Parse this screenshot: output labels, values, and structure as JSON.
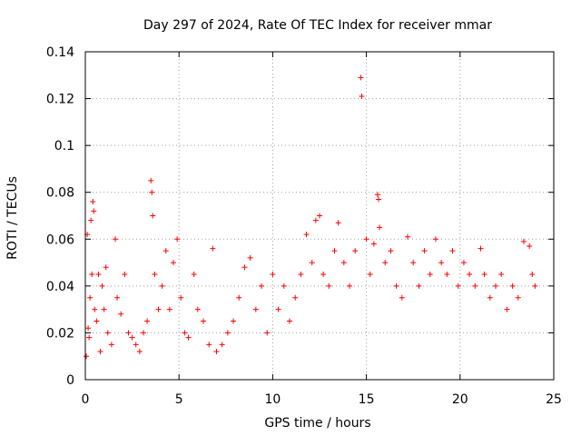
{
  "chart_data": {
    "type": "scatter",
    "title": "Day 297 of 2024, Rate Of TEC Index for receiver mmar",
    "xlabel": "GPS time / hours",
    "ylabel": "ROTI / TECUs",
    "xlim": [
      0,
      25
    ],
    "ylim": [
      0,
      0.14
    ],
    "x_ticks": [
      "0",
      "5",
      "10",
      "15",
      "20",
      "25"
    ],
    "y_ticks": [
      "0",
      "0.02",
      "0.04",
      "0.06",
      "0.08",
      "0.1",
      "0.12",
      "0.14"
    ],
    "grid": true,
    "marker": "+",
    "color": "#ff0000",
    "series": [
      {
        "name": "ROTI",
        "points": [
          [
            0.05,
            0.01
          ],
          [
            0.1,
            0.062
          ],
          [
            0.15,
            0.022
          ],
          [
            0.2,
            0.018
          ],
          [
            0.25,
            0.035
          ],
          [
            0.3,
            0.068
          ],
          [
            0.35,
            0.045
          ],
          [
            0.4,
            0.076
          ],
          [
            0.45,
            0.072
          ],
          [
            0.5,
            0.03
          ],
          [
            0.6,
            0.025
          ],
          [
            0.7,
            0.045
          ],
          [
            0.8,
            0.012
          ],
          [
            0.9,
            0.04
          ],
          [
            1.0,
            0.03
          ],
          [
            1.1,
            0.048
          ],
          [
            1.2,
            0.02
          ],
          [
            1.4,
            0.015
          ],
          [
            1.6,
            0.06
          ],
          [
            1.7,
            0.035
          ],
          [
            1.9,
            0.028
          ],
          [
            2.1,
            0.045
          ],
          [
            2.3,
            0.02
          ],
          [
            2.5,
            0.018
          ],
          [
            2.7,
            0.015
          ],
          [
            2.9,
            0.012
          ],
          [
            3.1,
            0.02
          ],
          [
            3.3,
            0.025
          ],
          [
            3.5,
            0.085
          ],
          [
            3.55,
            0.08
          ],
          [
            3.6,
            0.07
          ],
          [
            3.7,
            0.045
          ],
          [
            3.9,
            0.03
          ],
          [
            4.1,
            0.04
          ],
          [
            4.3,
            0.055
          ],
          [
            4.5,
            0.03
          ],
          [
            4.7,
            0.05
          ],
          [
            4.9,
            0.06
          ],
          [
            5.1,
            0.035
          ],
          [
            5.3,
            0.02
          ],
          [
            5.5,
            0.018
          ],
          [
            5.8,
            0.045
          ],
          [
            6.0,
            0.03
          ],
          [
            6.3,
            0.025
          ],
          [
            6.6,
            0.015
          ],
          [
            6.8,
            0.056
          ],
          [
            7.0,
            0.012
          ],
          [
            7.3,
            0.015
          ],
          [
            7.6,
            0.02
          ],
          [
            7.9,
            0.025
          ],
          [
            8.2,
            0.035
          ],
          [
            8.5,
            0.048
          ],
          [
            8.8,
            0.052
          ],
          [
            9.1,
            0.03
          ],
          [
            9.4,
            0.04
          ],
          [
            9.7,
            0.02
          ],
          [
            10.0,
            0.045
          ],
          [
            10.3,
            0.03
          ],
          [
            10.6,
            0.04
          ],
          [
            10.9,
            0.025
          ],
          [
            11.2,
            0.035
          ],
          [
            11.5,
            0.045
          ],
          [
            11.8,
            0.062
          ],
          [
            12.1,
            0.05
          ],
          [
            12.3,
            0.068
          ],
          [
            12.5,
            0.07
          ],
          [
            12.7,
            0.045
          ],
          [
            13.0,
            0.04
          ],
          [
            13.3,
            0.055
          ],
          [
            13.5,
            0.067
          ],
          [
            13.8,
            0.05
          ],
          [
            14.1,
            0.04
          ],
          [
            14.4,
            0.055
          ],
          [
            14.7,
            0.129
          ],
          [
            14.75,
            0.121
          ],
          [
            15.0,
            0.06
          ],
          [
            15.2,
            0.045
          ],
          [
            15.4,
            0.058
          ],
          [
            15.6,
            0.079
          ],
          [
            15.65,
            0.077
          ],
          [
            15.7,
            0.065
          ],
          [
            16.0,
            0.05
          ],
          [
            16.3,
            0.055
          ],
          [
            16.6,
            0.04
          ],
          [
            16.9,
            0.035
          ],
          [
            17.2,
            0.061
          ],
          [
            17.5,
            0.05
          ],
          [
            17.8,
            0.04
          ],
          [
            18.1,
            0.055
          ],
          [
            18.4,
            0.045
          ],
          [
            18.7,
            0.06
          ],
          [
            19.0,
            0.05
          ],
          [
            19.3,
            0.045
          ],
          [
            19.6,
            0.055
          ],
          [
            19.9,
            0.04
          ],
          [
            20.2,
            0.05
          ],
          [
            20.5,
            0.045
          ],
          [
            20.8,
            0.04
          ],
          [
            21.1,
            0.056
          ],
          [
            21.3,
            0.045
          ],
          [
            21.6,
            0.035
          ],
          [
            21.9,
            0.04
          ],
          [
            22.2,
            0.045
          ],
          [
            22.5,
            0.03
          ],
          [
            22.8,
            0.04
          ],
          [
            23.1,
            0.035
          ],
          [
            23.4,
            0.059
          ],
          [
            23.7,
            0.057
          ],
          [
            23.85,
            0.045
          ],
          [
            24.0,
            0.04
          ]
        ]
      }
    ]
  }
}
